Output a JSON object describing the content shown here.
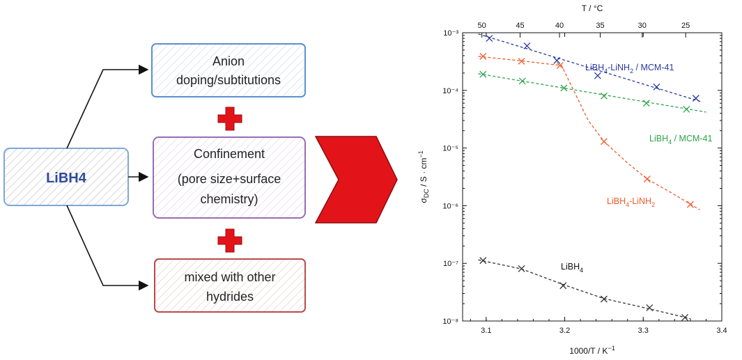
{
  "diagram": {
    "source_label": "LiBH4",
    "boxes": [
      {
        "lines": [
          "Anion",
          "doping/subtitutions"
        ],
        "color": "#5b8fd0"
      },
      {
        "lines": [
          "Confinement",
          "(pore size+surface",
          "chemistry)"
        ],
        "color": "#9b6bb5"
      },
      {
        "lines": [
          "mixed with other",
          "hydrides"
        ],
        "color": "#b94a4a"
      }
    ],
    "plus_color": "#e2141a",
    "arrow_color": "#e2141a"
  },
  "chart_data": {
    "type": "scatter",
    "xlabel": "1000/T / K⁻¹",
    "ylabel": "σDC / S · cm⁻¹",
    "top_axis_label": "T / °C",
    "xlim": [
      3.07,
      3.4
    ],
    "ylim_log10": [
      -8,
      -3
    ],
    "log_y": true,
    "x_ticks": [
      "3.1",
      "3.2",
      "3.3",
      "3.4"
    ],
    "y_ticks": [
      "10⁻⁸",
      "10⁻⁷",
      "10⁻⁶",
      "10⁻⁵",
      "10⁻⁴",
      "10⁻³"
    ],
    "top_ticks": [
      50,
      45,
      40,
      35,
      30,
      25
    ],
    "series": [
      {
        "name": "LiBH4-LiNH2 / MCM-41",
        "color": "#2a3a9c",
        "points": [
          [
            3.104,
            0.0008
          ],
          [
            3.152,
            0.00059
          ],
          [
            3.19,
            0.00033
          ],
          [
            3.242,
            0.00018
          ],
          [
            3.317,
            0.000115
          ],
          [
            3.367,
            7.3e-05
          ]
        ],
        "fit": [
          [
            3.09,
            0.00095
          ],
          [
            3.375,
            6.3e-05
          ]
        ]
      },
      {
        "name": "LiBH4 / MCM-41",
        "color": "#2ba34a",
        "points": [
          [
            3.096,
            0.00019
          ],
          [
            3.146,
            0.000145
          ],
          [
            3.199,
            0.00011
          ],
          [
            3.25,
            8e-05
          ],
          [
            3.304,
            6e-05
          ],
          [
            3.355,
            4.7e-05
          ]
        ],
        "fit": [
          [
            3.09,
            0.000195
          ],
          [
            3.38,
            4.2e-05
          ]
        ]
      },
      {
        "name": "LiBH4-LiNH2",
        "color": "#ee5a2a",
        "points": [
          [
            3.096,
            0.00039
          ],
          [
            3.145,
            0.00032
          ],
          [
            3.194,
            0.00027
          ],
          [
            3.25,
            1.3e-05
          ],
          [
            3.305,
            2.9e-06
          ],
          [
            3.36,
            1.05e-06
          ]
        ],
        "fit": [
          [
            3.09,
            0.00039
          ],
          [
            3.145,
            0.000325
          ],
          [
            3.196,
            0.00027
          ],
          [
            3.205,
            0.00015
          ],
          [
            3.23,
            3e-05
          ],
          [
            3.25,
            1.3e-05
          ],
          [
            3.28,
            5.5e-06
          ],
          [
            3.305,
            2.9e-06
          ],
          [
            3.335,
            1.7e-06
          ],
          [
            3.372,
            8.5e-07
          ]
        ]
      },
      {
        "name": "LiBH4",
        "color": "#333333",
        "points": [
          [
            3.096,
            1.12e-07
          ],
          [
            3.145,
            8.1e-08
          ],
          [
            3.198,
            4.1e-08
          ],
          [
            3.25,
            2.4e-08
          ],
          [
            3.308,
            1.7e-08
          ],
          [
            3.353,
            1.15e-08
          ]
        ],
        "fit": [
          [
            3.09,
            1.15e-07
          ],
          [
            3.145,
            8e-08
          ],
          [
            3.2,
            4.2e-08
          ],
          [
            3.25,
            2.45e-08
          ],
          [
            3.3,
            1.72e-08
          ],
          [
            3.36,
            1.1e-08
          ]
        ]
      }
    ],
    "series_labels": [
      {
        "main": "LiBH",
        "sub1": "4",
        "mid": "-LiNH",
        "sub2": "2",
        "tail": " / MCM-41",
        "color": "#2a3a9c"
      },
      {
        "main": "LiBH",
        "sub1": "4",
        "mid": " / MCM-41",
        "sub2": "",
        "tail": "",
        "color": "#2ba34a"
      },
      {
        "main": "LiBH",
        "sub1": "4",
        "mid": "-LiNH",
        "sub2": "2",
        "tail": "",
        "color": "#ee5a2a"
      },
      {
        "main": "LiBH",
        "sub1": "4",
        "mid": "",
        "sub2": "",
        "tail": "",
        "color": "#111111"
      }
    ],
    "grid": false
  }
}
